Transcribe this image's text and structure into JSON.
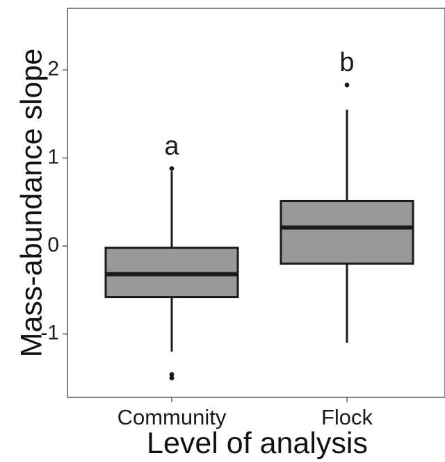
{
  "chart_data": {
    "type": "boxplot",
    "title": "",
    "xlabel": "Level of analysis",
    "ylabel": "Mass-abundance slope",
    "ylim": [
      -1.72,
      2.7
    ],
    "yticks": [
      -1,
      0,
      1,
      2
    ],
    "ytick_labels": [
      "-1",
      "0",
      "1",
      "2"
    ],
    "grid": false,
    "colors": {
      "box_fill": "#999999",
      "stroke": "#1a1a1a",
      "frame": "#333333"
    },
    "categories": [
      "Community",
      "Flock"
    ],
    "boxes": [
      {
        "name": "Community",
        "q1": -0.58,
        "median": -0.32,
        "q3": -0.02,
        "whisker_low": -1.2,
        "whisker_high": 0.85,
        "outliers": [
          0.88,
          -1.46,
          -1.5
        ],
        "label": "a"
      },
      {
        "name": "Flock",
        "q1": -0.2,
        "median": 0.21,
        "q3": 0.51,
        "whisker_low": -1.1,
        "whisker_high": 1.55,
        "outliers": [
          1.83
        ],
        "label": "b"
      }
    ]
  }
}
